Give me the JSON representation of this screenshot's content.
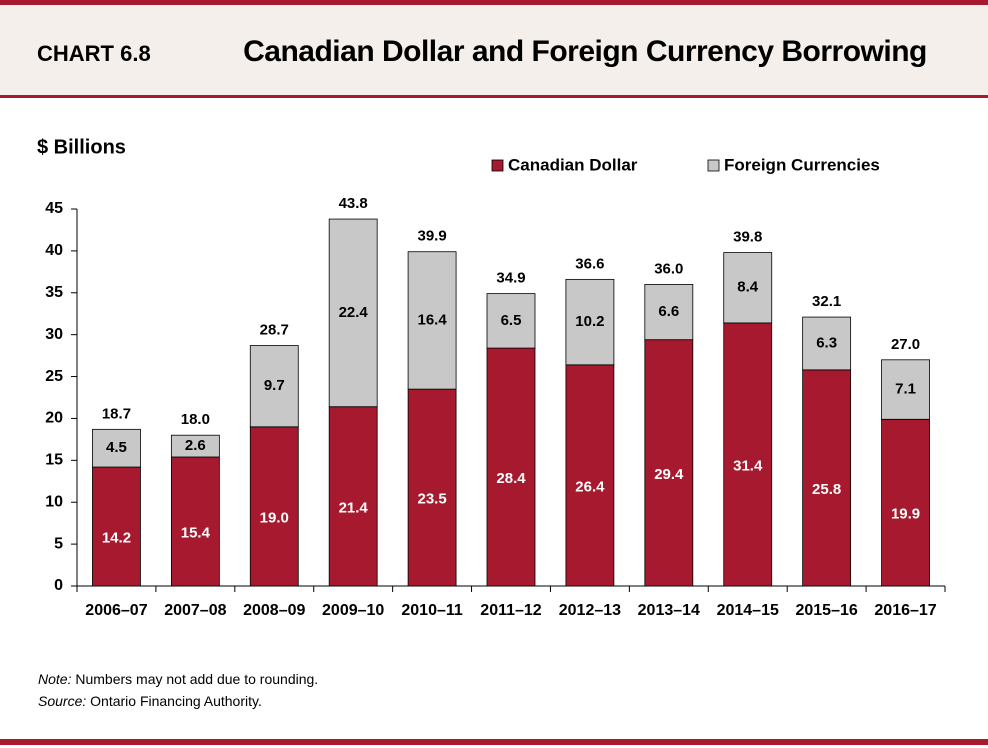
{
  "header": {
    "label": "CHART 6.8",
    "title": "Canadian Dollar and Foreign Currency Borrowing"
  },
  "chart_data": {
    "type": "stacked-bar",
    "y_label": "$ Billions",
    "categories": [
      "2006–07",
      "2007–08",
      "2008–09",
      "2009–10",
      "2010–11",
      "2011–12",
      "2012–13",
      "2013–14",
      "2014–15",
      "2015–16",
      "2016–17"
    ],
    "series": [
      {
        "name": "Canadian Dollar",
        "color": "#a6192e",
        "values": [
          14.2,
          15.4,
          19.0,
          21.4,
          23.5,
          28.4,
          26.4,
          29.4,
          31.4,
          25.8,
          19.9
        ],
        "value_labels": [
          "14.2",
          "15.4",
          "19.0",
          "21.4",
          "23.5",
          "28.4",
          "26.4",
          "29.4",
          "31.4",
          "25.8",
          "19.9"
        ]
      },
      {
        "name": "Foreign Currencies",
        "color": "#c8c8c8",
        "values": [
          4.5,
          2.6,
          9.7,
          22.4,
          16.4,
          6.5,
          10.2,
          6.6,
          8.4,
          6.3,
          7.1
        ]
      }
    ],
    "totals": [
      18.7,
      18.0,
      28.7,
      43.8,
      39.9,
      34.9,
      36.6,
      36.0,
      39.8,
      32.1,
      27.0
    ],
    "total_labels": [
      "18.7",
      "18.0",
      "28.7",
      "43.8",
      "39.9",
      "34.9",
      "36.6",
      "36.0",
      "39.8",
      "32.1",
      "27.0"
    ],
    "ylim": [
      0,
      45
    ],
    "yticks": [
      0,
      5,
      10,
      15,
      20,
      25,
      30,
      35,
      40,
      45
    ],
    "grid": false
  },
  "notes": {
    "note_label": "Note:",
    "note_text": "Numbers may not add due to rounding.",
    "source_label": "Source:",
    "source_text": "Ontario Financing Authority."
  }
}
